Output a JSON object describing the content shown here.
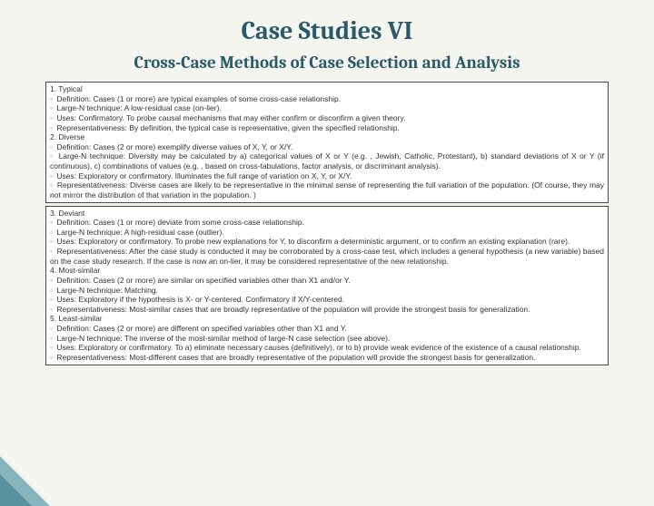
{
  "title": "Case Studies VI",
  "subtitle": "Cross-Case Methods of Case Selection and Analysis",
  "colors": {
    "title_color": "#2a5a68",
    "bullet_color": "#c05050",
    "box_border": "#4a4a4a",
    "accent1": "#5a9aa8",
    "accent2": "#3a7a88",
    "background": "#f5f5f0"
  },
  "boxes": [
    {
      "sections": [
        {
          "head": "1. Typical",
          "lines": [
            "Definition: Cases (1 or more) are typical examples of some cross-case relationship.",
            "Large-N technique: A low-residual case (on-lier).",
            "Uses: Confirmatory. To probe causal mechanisms that may either confirm or disconfirm a given theory.",
            "Representativeness: By definition, the typical case is representative, given the specified relationship."
          ]
        },
        {
          "head": "2. Diverse",
          "lines": [
            "Definition: Cases (2 or more) exemplify diverse values of X, Y, or X/Y.",
            "Large-N technique: Diversity may be calculated by a) categorical values of X or Y (e.g. , Jewish, Catholic, Protestant), b) standard deviations of X or Y (if continuous), c) combinations of values (e.g. , based on cross-tabulations, factor analysis, or discriminant analysis).",
            "Uses: Exploratory or confirmatory. Illuminates the full range of variation on X, Y, or X/Y.",
            "Representativeness: Diverse cases are likely to be representative in the minimal sense of representing the full variation of the population. (Of course, they may not mirror the distribution of that variation in the population. )"
          ]
        }
      ]
    },
    {
      "sections": [
        {
          "head": "3. Deviant",
          "lines": [
            "Definition: Cases (1 or more) deviate from some cross-case relationship.",
            "Large-N technique: A high-residual case (outlier).",
            "Uses: Exploratory or confirmatory. To probe new explanations for Y, to disconfirm a deterministic argument, or to confirm an existing explanation (rare).",
            "Representativeness: After the case study is conducted it may be corroborated by a cross-case test, which includes a general hypothesis (a new variable) based on the case study research. If the case is now an on-lier, it may be considered representative of the new relationship."
          ]
        },
        {
          "head": "4. Most-similar",
          "lines": [
            "Definition: Cases (2 or more) are similar on specified variables other than X1 and/or Y.",
            "Large-N technique: Matching.",
            "Uses: Exploratory if the hypothesis is X- or Y-centered. Confirmatory if X/Y-centered.",
            "Representativeness: Most-similar cases that are broadly representative of the population will provide the strongest basis for generalization."
          ]
        },
        {
          "head": "5. Least-similar",
          "lines": [
            "Definition: Cases (2 or more) are different on specified variables other than X1 and Y.",
            "Large-N technique: The inverse of the most-similar method of large-N case selection (see above).",
            "Uses: Exploratory or confirmatory. To a) eliminate necessary causes (definitively), or to b) provide weak evidence of the existence of a causal relationship.",
            "Representativeness: Most-different cases that are broadly representative of the population will provide the strongest basis for generalization."
          ]
        }
      ]
    }
  ]
}
